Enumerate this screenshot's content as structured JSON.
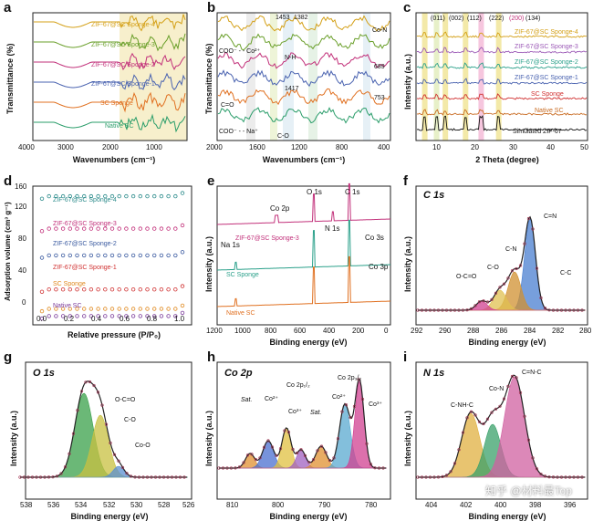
{
  "watermark": "知乎 @材料最Top",
  "panels": {
    "a": {
      "label": "a",
      "type": "line",
      "xlabel": "Wavenumbers (cm⁻¹)",
      "ylabel": "Transmittance (%)",
      "xlim": [
        4000,
        400
      ],
      "xticks": [
        "4000",
        "3000",
        "2000",
        "1000"
      ],
      "series": [
        {
          "name": "ZIF-67@SC Sponge-4",
          "color": "#d4a017"
        },
        {
          "name": "ZIF-67@SC Sponge-3",
          "color": "#6a9f2a"
        },
        {
          "name": "ZIF-67@SC Sponge-2",
          "color": "#c2307a"
        },
        {
          "name": "ZIF-67@SC Sponge-1",
          "color": "#4a63b0"
        },
        {
          "name": "SC Sponge",
          "color": "#e07020"
        },
        {
          "name": "Native SC",
          "color": "#2a9d6a"
        }
      ]
    },
    "b": {
      "label": "b",
      "type": "line",
      "xlabel": "Wavenumbers (cm⁻¹)",
      "ylabel": "Transmittance (%)",
      "xlim": [
        2000,
        400
      ],
      "xticks": [
        "2000",
        "1600",
        "1200",
        "800",
        "400"
      ],
      "annotations": [
        "1453",
        "1382",
        "N-H",
        "1417",
        "Co-N",
        "689",
        "753",
        "C=O",
        "C-O",
        "COO⁻ - - Co²⁺",
        "COO⁻ - - Na⁺"
      ]
    },
    "c": {
      "label": "c",
      "type": "line",
      "xlabel": "2 Theta (degree)",
      "ylabel": "Intensity (a.u.)",
      "xlim": [
        5,
        50
      ],
      "xticks": [
        "10",
        "20",
        "30",
        "40",
        "50"
      ],
      "peak_labels": [
        "(011)",
        "(002)",
        "(112)",
        "(222)",
        "(200)",
        "(134)"
      ],
      "peak_positions": [
        7.3,
        10.4,
        12.7,
        18.0,
        22.1,
        26.7
      ],
      "series": [
        {
          "name": "ZIF-67@SC Sponge-4",
          "color": "#d4a017"
        },
        {
          "name": "ZIF-67@SC Sponge-3",
          "color": "#9b59b6"
        },
        {
          "name": "ZIF-67@SC Sponge-2",
          "color": "#2aa08a"
        },
        {
          "name": "ZIF-67@SC Sponge-1",
          "color": "#4a63b0"
        },
        {
          "name": "SC Sponge",
          "color": "#d03030"
        },
        {
          "name": "Native SC",
          "color": "#c86a20"
        },
        {
          "name": "Simulated ZIF-67",
          "color": "#111111"
        }
      ]
    },
    "d": {
      "label": "d",
      "type": "scatter",
      "xlabel": "Relative pressure (P/P₀)",
      "ylabel": "Adsorption volume (cm³ g⁻¹)",
      "xlim": [
        0,
        1.0
      ],
      "ylim": [
        0,
        160
      ],
      "xticks": [
        "0.0",
        "0.2",
        "0.4",
        "0.6",
        "0.8",
        "1.0"
      ],
      "yticks": [
        "0",
        "40",
        "80",
        "120",
        "160"
      ],
      "series": [
        {
          "name": "ZIF-67@SC Sponge-4",
          "color": "#2a8a8a",
          "level": 152
        },
        {
          "name": "ZIF-67@SC Sponge-3",
          "color": "#c2307a",
          "level": 112
        },
        {
          "name": "ZIF-67@SC Sponge-2",
          "color": "#3a5aa0",
          "level": 79
        },
        {
          "name": "ZIF-67@SC Sponge-1",
          "color": "#d03030",
          "level": 37
        },
        {
          "name": "SC Sponge",
          "color": "#e08a20",
          "level": 13
        },
        {
          "name": "Native SC",
          "color": "#7a3a9a",
          "level": 4
        }
      ]
    },
    "e": {
      "label": "e",
      "type": "line",
      "xlabel": "Binding energy (eV)",
      "ylabel": "Intensity (a.u.)",
      "xlim": [
        1200,
        0
      ],
      "xticks": [
        "1200",
        "1000",
        "800",
        "600",
        "400",
        "200",
        "0"
      ],
      "annotations": [
        "O 1s",
        "C 1s",
        "Co 2p",
        "N 1s",
        "Na 1s",
        "Co 3s",
        "Co 3p"
      ],
      "series": [
        {
          "name": "ZIF-67@SC Sponge-3",
          "color": "#c2307a"
        },
        {
          "name": "SC Sponge",
          "color": "#2aa08a"
        },
        {
          "name": "Native SC",
          "color": "#e07020"
        }
      ]
    },
    "f": {
      "label": "f",
      "title": "C 1s",
      "type": "line",
      "xlabel": "Binding energy (eV)",
      "ylabel": "Intensity (a.u.)",
      "xlim": [
        292,
        280
      ],
      "xticks": [
        "292",
        "290",
        "288",
        "286",
        "284",
        "282",
        "280"
      ],
      "components": [
        "C=N",
        "C-N",
        "C-O",
        "O-C=O",
        "C-C"
      ]
    },
    "g": {
      "label": "g",
      "title": "O 1s",
      "type": "line",
      "xlabel": "Binding energy (eV)",
      "ylabel": "Intensity (a.u.)",
      "xlim": [
        538,
        526
      ],
      "xticks": [
        "538",
        "536",
        "534",
        "532",
        "530",
        "528",
        "526"
      ],
      "components": [
        "O-C=O",
        "C-O",
        "Co-O"
      ]
    },
    "h": {
      "label": "h",
      "title": "Co 2p",
      "type": "line",
      "xlabel": "Binding energy (eV)",
      "ylabel": "Intensity (a.u.)",
      "xlim": [
        812,
        775
      ],
      "xticks": [
        "810",
        "800",
        "790",
        "780"
      ],
      "components": [
        "Sat.",
        "Co²⁺",
        "Co 2p₁/₂",
        "Co³⁺",
        "Sat.",
        "Co 2p₃/₂",
        "Co²⁺",
        "Co³⁺"
      ]
    },
    "i": {
      "label": "i",
      "title": "N 1s",
      "type": "line",
      "xlabel": "Binding energy (eV)",
      "ylabel": "Intensity (a.u.)",
      "xlim": [
        405,
        395
      ],
      "xticks": [
        "404",
        "402",
        "400",
        "398",
        "396"
      ],
      "components": [
        "C-NH-C",
        "Co-N",
        "C=N-C"
      ]
    }
  },
  "chart_data": [
    {
      "type": "line",
      "title": "a",
      "xlabel": "Wavenumbers (cm-1)",
      "ylabel": "Transmittance (%)",
      "xlim": [
        4000,
        400
      ],
      "series": [
        {
          "name": "ZIF-67@SC Sponge-4"
        },
        {
          "name": "ZIF-67@SC Sponge-3"
        },
        {
          "name": "ZIF-67@SC Sponge-2"
        },
        {
          "name": "ZIF-67@SC Sponge-1"
        },
        {
          "name": "SC Sponge"
        },
        {
          "name": "Native SC"
        }
      ]
    },
    {
      "type": "line",
      "title": "b",
      "xlabel": "Wavenumbers (cm-1)",
      "ylabel": "Transmittance (%)",
      "xlim": [
        2000,
        400
      ]
    },
    {
      "type": "line",
      "title": "c",
      "xlabel": "2 Theta (degree)",
      "ylabel": "Intensity (a.u.)",
      "xlim": [
        5,
        50
      ],
      "series": [
        {
          "name": "ZIF-67@SC Sponge-4"
        },
        {
          "name": "ZIF-67@SC Sponge-3"
        },
        {
          "name": "ZIF-67@SC Sponge-2"
        },
        {
          "name": "ZIF-67@SC Sponge-1"
        },
        {
          "name": "SC Sponge"
        },
        {
          "name": "Native SC"
        },
        {
          "name": "Simulated ZIF-67"
        }
      ]
    },
    {
      "type": "scatter",
      "title": "d",
      "xlabel": "Relative pressure (P/P0)",
      "ylabel": "Adsorption volume (cm3 g-1)",
      "xlim": [
        0,
        1.0
      ],
      "ylim": [
        0,
        160
      ],
      "series": [
        {
          "name": "ZIF-67@SC Sponge-4",
          "values": [
            152
          ]
        },
        {
          "name": "ZIF-67@SC Sponge-3",
          "values": [
            112
          ]
        },
        {
          "name": "ZIF-67@SC Sponge-2",
          "values": [
            79
          ]
        },
        {
          "name": "ZIF-67@SC Sponge-1",
          "values": [
            37
          ]
        },
        {
          "name": "SC Sponge",
          "values": [
            13
          ]
        },
        {
          "name": "Native SC",
          "values": [
            4
          ]
        }
      ]
    },
    {
      "type": "line",
      "title": "e",
      "xlabel": "Binding energy (eV)",
      "ylabel": "Intensity (a.u.)",
      "xlim": [
        1200,
        0
      ]
    },
    {
      "type": "line",
      "title": "f C 1s",
      "xlabel": "Binding energy (eV)",
      "ylabel": "Intensity (a.u.)",
      "xlim": [
        292,
        280
      ]
    },
    {
      "type": "line",
      "title": "g O 1s",
      "xlabel": "Binding energy (eV)",
      "ylabel": "Intensity (a.u.)",
      "xlim": [
        538,
        526
      ]
    },
    {
      "type": "line",
      "title": "h Co 2p",
      "xlabel": "Binding energy (eV)",
      "ylabel": "Intensity (a.u.)",
      "xlim": [
        812,
        775
      ]
    },
    {
      "type": "line",
      "title": "i N 1s",
      "xlabel": "Binding energy (eV)",
      "ylabel": "Intensity (a.u.)",
      "xlim": [
        405,
        395
      ]
    }
  ]
}
